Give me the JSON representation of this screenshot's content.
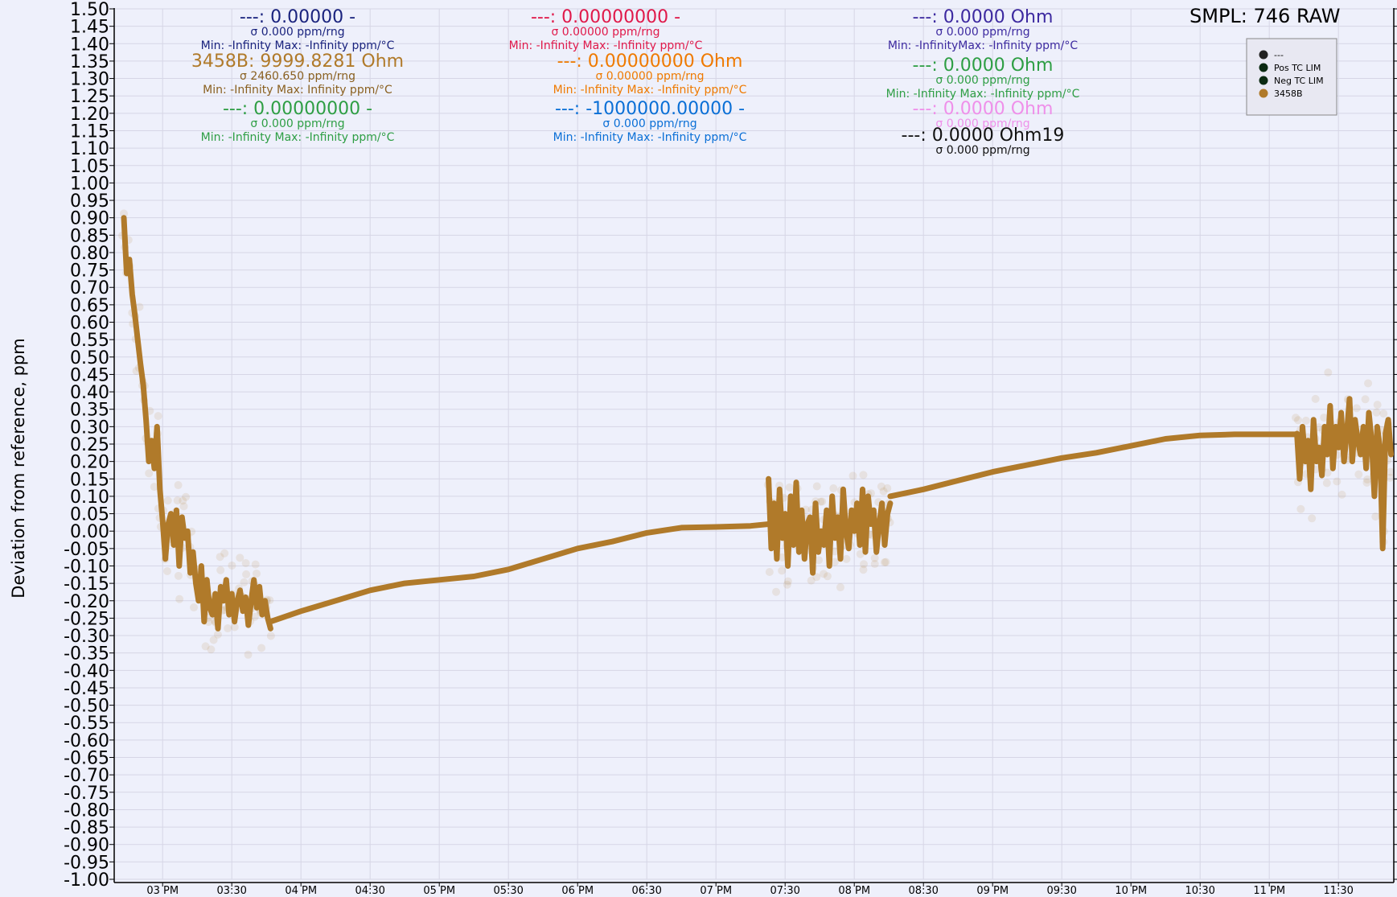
{
  "header": {
    "sample_readout": "SMPL: 746 RAW"
  },
  "stat_blocks": [
    {
      "main": "---: 0.00000 -",
      "sigma": "σ 0.000 ppm/rng",
      "minmax": "Min: -Infinity Max: -Infinity ppm/°C",
      "color": "#1a237e",
      "sigma_color": "#1a237e"
    },
    {
      "main": "3458B: 9999.8281 Ohm",
      "sigma": "σ 2460.650 ppm/rng",
      "minmax": "Min: -Infinity Max: Infinity ppm/°C",
      "color": "#b07a2a",
      "sigma_color": "#8a6020"
    },
    {
      "main": "---: 0.00000000 -",
      "sigma": "σ 0.000 ppm/rng",
      "minmax": "Min: -Infinity Max: -Infinity ppm/°C",
      "color": "#2e9e44",
      "sigma_color": "#2e9e44"
    },
    {
      "main": "---: 0.00000000 -",
      "sigma": "σ 0.00000 ppm/rng",
      "minmax": "Min: -Infinity Max: -Infinity ppm/°C",
      "color": "#e0194a",
      "sigma_color": "#e0194a"
    },
    {
      "main": "---: 0.00000000 Ohm",
      "sigma": "σ 0.00000 ppm/rng",
      "minmax": "Min: -Infinity Max: -Infinity ppm/°C",
      "color": "#ef7a00",
      "sigma_color": "#ef7a00"
    },
    {
      "main": "---: -1000000.00000 -",
      "sigma": "σ 0.000 ppm/rng",
      "minmax": "Min: -Infinity Max: -Infinity ppm/°C",
      "color": "#0a6fd6",
      "sigma_color": "#0a6fd6"
    },
    {
      "main": "---: 0.0000 Ohm",
      "sigma": "σ 0.000 ppm/rng",
      "minmax": "Min: -InfinityMax: -Infinity ppm/°C",
      "color": "#3d2aa0",
      "sigma_color": "#3d2aa0"
    },
    {
      "main": "---: 0.0000 Ohm",
      "sigma": "σ 0.000 ppm/rng",
      "minmax": "Min: -Infinity Max: -Infinity ppm/°C",
      "color": "#2e9e44",
      "sigma_color": "#2e9e44"
    },
    {
      "main": "---: 0.0000 Ohm",
      "sigma": "σ 0.000 ppm/rng",
      "minmax": "",
      "color": "#ef90ea",
      "sigma_color": "#ef90ea"
    },
    {
      "main": "---: 0.0000 Ohm19",
      "sigma": "σ 0.000 ppm/rng",
      "minmax": "",
      "color": "#111111",
      "sigma_color": "#111111"
    }
  ],
  "legend": {
    "items": [
      {
        "label": "---",
        "color": "#222222"
      },
      {
        "label": "Pos TC LIM",
        "color": "#0b2a12"
      },
      {
        "label": "Neg TC LIM",
        "color": "#0b2a12"
      },
      {
        "label": "3458B",
        "color": "#b07a2a"
      }
    ]
  },
  "chart_data": {
    "type": "line",
    "ylabel": "Deviation from reference, ppm",
    "xlabel": "",
    "ylim": [
      -1.0,
      1.5
    ],
    "y_tick_step": 0.05,
    "grid": true,
    "legend_position": "top-right",
    "x_range_hours": [
      14.65,
      23.9
    ],
    "x_tick_labels": [
      "03 PM",
      "03:30",
      "04 PM",
      "04:30",
      "05 PM",
      "05:30",
      "06 PM",
      "06:30",
      "07 PM",
      "07:30",
      "08 PM",
      "08:30",
      "09 PM",
      "09:30",
      "10 PM",
      "10:30",
      "11 PM",
      "11:30"
    ],
    "x_tick_hours": [
      15.0,
      15.5,
      16.0,
      16.5,
      17.0,
      17.5,
      18.0,
      18.5,
      19.0,
      19.5,
      20.0,
      20.5,
      21.0,
      21.5,
      22.0,
      22.5,
      23.0,
      23.5
    ],
    "series": [
      {
        "name": "3458B",
        "color": "#b07a2a",
        "segments": [
          {
            "x": [
              14.72,
              14.74,
              14.76,
              14.78,
              14.8,
              14.82,
              14.84,
              14.86,
              14.88,
              14.9,
              14.92,
              14.94,
              14.96,
              14.98,
              15.0,
              15.02,
              15.04,
              15.06,
              15.08,
              15.1,
              15.12,
              15.14,
              15.16,
              15.18,
              15.2,
              15.22,
              15.24,
              15.26,
              15.28,
              15.3,
              15.32,
              15.34,
              15.36,
              15.38,
              15.4,
              15.42,
              15.44,
              15.46,
              15.48,
              15.5,
              15.52,
              15.54,
              15.56,
              15.58,
              15.6,
              15.62,
              15.64,
              15.66,
              15.68,
              15.7,
              15.72,
              15.74,
              15.76,
              15.78
            ],
            "y": [
              0.9,
              0.74,
              0.78,
              0.68,
              0.62,
              0.55,
              0.48,
              0.42,
              0.32,
              0.2,
              0.26,
              0.18,
              0.3,
              0.12,
              0.03,
              -0.08,
              0.02,
              0.05,
              -0.04,
              0.06,
              -0.1,
              0.04,
              -0.02,
              0.0,
              -0.12,
              -0.06,
              -0.15,
              -0.2,
              -0.1,
              -0.26,
              -0.14,
              -0.22,
              -0.24,
              -0.18,
              -0.28,
              -0.16,
              -0.2,
              -0.14,
              -0.24,
              -0.18,
              -0.26,
              -0.2,
              -0.17,
              -0.23,
              -0.19,
              -0.27,
              -0.2,
              -0.14,
              -0.22,
              -0.16,
              -0.24,
              -0.2,
              -0.25,
              -0.28
            ]
          },
          {
            "x": [
              15.78,
              16.0,
              16.25,
              16.5,
              16.75,
              17.0,
              17.25,
              17.5,
              17.75,
              18.0,
              18.25,
              18.5,
              18.75,
              19.0,
              19.25,
              19.38
            ],
            "y": [
              -0.26,
              -0.23,
              -0.2,
              -0.17,
              -0.15,
              -0.14,
              -0.13,
              -0.11,
              -0.08,
              -0.05,
              -0.03,
              -0.005,
              0.01,
              0.012,
              0.015,
              0.02
            ]
          },
          {
            "x": [
              19.38,
              19.4,
              19.42,
              19.44,
              19.46,
              19.48,
              19.5,
              19.52,
              19.54,
              19.56,
              19.58,
              19.6,
              19.62,
              19.64,
              19.66,
              19.68,
              19.7,
              19.72,
              19.74,
              19.76,
              19.78,
              19.8,
              19.82,
              19.84,
              19.86,
              19.88,
              19.9,
              19.92,
              19.94,
              19.96,
              19.98,
              20.0,
              20.02,
              20.04,
              20.06,
              20.08,
              20.1,
              20.12,
              20.14,
              20.16,
              20.18,
              20.2,
              20.22,
              20.24,
              20.26
            ],
            "y": [
              0.15,
              -0.05,
              0.08,
              -0.08,
              0.12,
              -0.02,
              0.05,
              -0.1,
              0.1,
              -0.04,
              0.14,
              -0.06,
              0.06,
              -0.08,
              0.02,
              0.04,
              -0.12,
              0.08,
              -0.06,
              0.0,
              -0.04,
              0.06,
              -0.1,
              0.1,
              -0.02,
              0.04,
              -0.08,
              0.12,
              0.0,
              -0.05,
              0.06,
              0.0,
              0.08,
              -0.04,
              0.12,
              -0.06,
              0.1,
              0.02,
              0.06,
              -0.06,
              0.02,
              0.08,
              -0.04,
              0.05,
              0.08
            ]
          },
          {
            "x": [
              20.26,
              20.5,
              20.75,
              21.0,
              21.25,
              21.5,
              21.75,
              22.0,
              22.25,
              22.5,
              22.75,
              23.0,
              23.2
            ],
            "y": [
              0.1,
              0.12,
              0.145,
              0.17,
              0.19,
              0.21,
              0.225,
              0.245,
              0.265,
              0.275,
              0.278,
              0.278,
              0.278
            ]
          },
          {
            "x": [
              23.2,
              23.22,
              23.24,
              23.26,
              23.28,
              23.3,
              23.32,
              23.34,
              23.36,
              23.38,
              23.4,
              23.42,
              23.44,
              23.46,
              23.48,
              23.5,
              23.52,
              23.54,
              23.56,
              23.58,
              23.6,
              23.62,
              23.64,
              23.66,
              23.68,
              23.7,
              23.72,
              23.74,
              23.76,
              23.78,
              23.8,
              23.82,
              23.84,
              23.86,
              23.88
            ],
            "y": [
              0.28,
              0.15,
              0.3,
              0.2,
              0.26,
              0.12,
              0.32,
              0.2,
              0.24,
              0.16,
              0.3,
              0.22,
              0.36,
              0.18,
              0.3,
              0.24,
              0.34,
              0.2,
              0.28,
              0.38,
              0.2,
              0.32,
              0.26,
              0.22,
              0.3,
              0.18,
              0.34,
              0.26,
              0.1,
              0.3,
              0.24,
              -0.05,
              0.28,
              0.32,
              0.22
            ]
          }
        ]
      }
    ]
  }
}
